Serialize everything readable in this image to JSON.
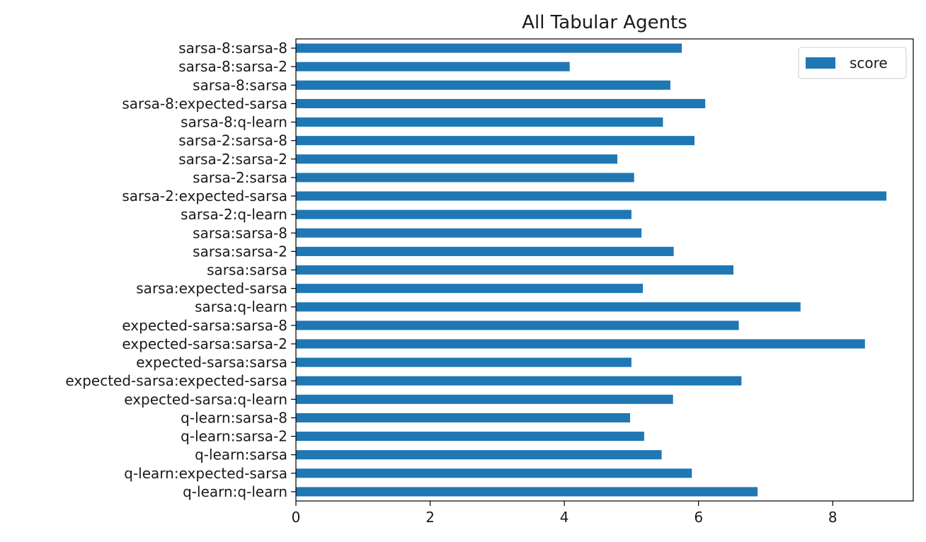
{
  "chart_data": {
    "type": "bar",
    "orientation": "horizontal",
    "title": "All Tabular Agents",
    "xlabel": "",
    "ylabel": "",
    "xlim": [
      0,
      9.2
    ],
    "xticks": [
      0,
      2,
      4,
      6,
      8
    ],
    "grid": false,
    "legend_position": "top-right",
    "bar_color": "#1f77b4",
    "categories": [
      "sarsa-8:sarsa-8",
      "sarsa-8:sarsa-2",
      "sarsa-8:sarsa",
      "sarsa-8:expected-sarsa",
      "sarsa-8:q-learn",
      "sarsa-2:sarsa-8",
      "sarsa-2:sarsa-2",
      "sarsa-2:sarsa",
      "sarsa-2:expected-sarsa",
      "sarsa-2:q-learn",
      "sarsa:sarsa-8",
      "sarsa:sarsa-2",
      "sarsa:sarsa",
      "sarsa:expected-sarsa",
      "sarsa:q-learn",
      "expected-sarsa:sarsa-8",
      "expected-sarsa:sarsa-2",
      "expected-sarsa:sarsa",
      "expected-sarsa:expected-sarsa",
      "expected-sarsa:q-learn",
      "q-learn:sarsa-8",
      "q-learn:sarsa-2",
      "q-learn:sarsa",
      "q-learn:expected-sarsa",
      "q-learn:q-learn"
    ],
    "series": [
      {
        "name": "score",
        "values": [
          5.75,
          4.08,
          5.58,
          6.1,
          5.47,
          5.94,
          4.79,
          5.04,
          8.8,
          5.0,
          5.15,
          5.63,
          6.52,
          5.17,
          7.52,
          6.6,
          8.48,
          5.0,
          6.64,
          5.62,
          4.98,
          5.19,
          5.45,
          5.9,
          6.88
        ]
      }
    ]
  }
}
